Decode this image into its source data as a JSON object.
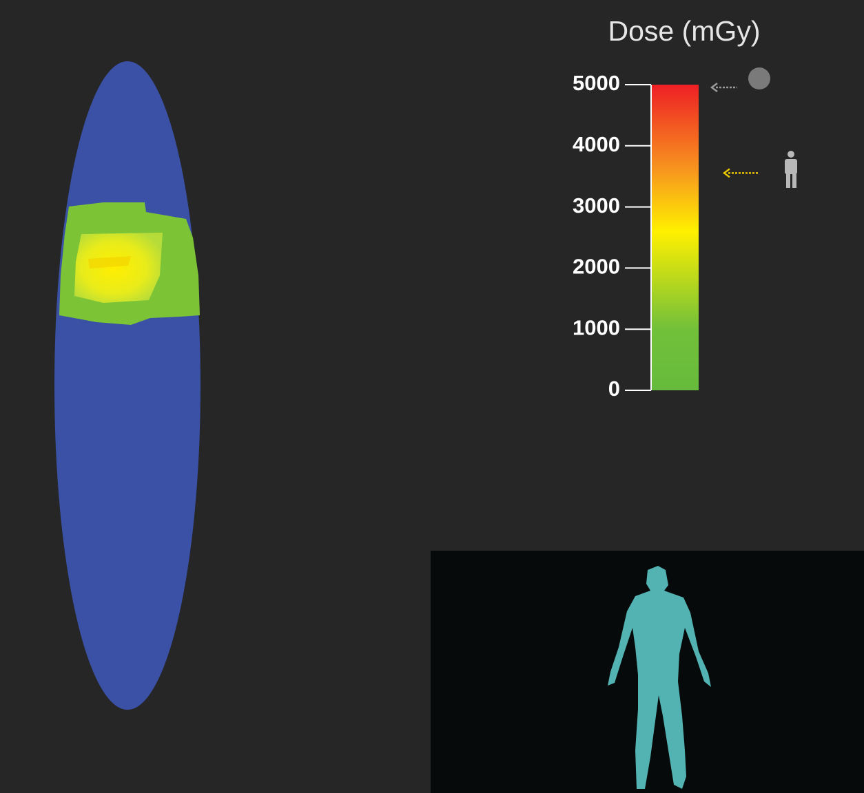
{
  "colorbar": {
    "title": "Dose (mGy)",
    "lim": [
      0,
      5000
    ],
    "ticks": [
      0,
      1000,
      2000,
      3000,
      4000,
      5000
    ],
    "stops": [
      {
        "value": 0,
        "color": "#66bb3c"
      },
      {
        "value": 1000,
        "color": "#72c03a"
      },
      {
        "value": 2600,
        "color": "#fff000"
      },
      {
        "value": 3600,
        "color": "#f7961e"
      },
      {
        "value": 5000,
        "color": "#ee1f25"
      }
    ],
    "indicators": [
      {
        "value": 5000,
        "color": "#9a9a9a"
      },
      {
        "value": 3600,
        "color": "#e8c400"
      }
    ]
  }
}
